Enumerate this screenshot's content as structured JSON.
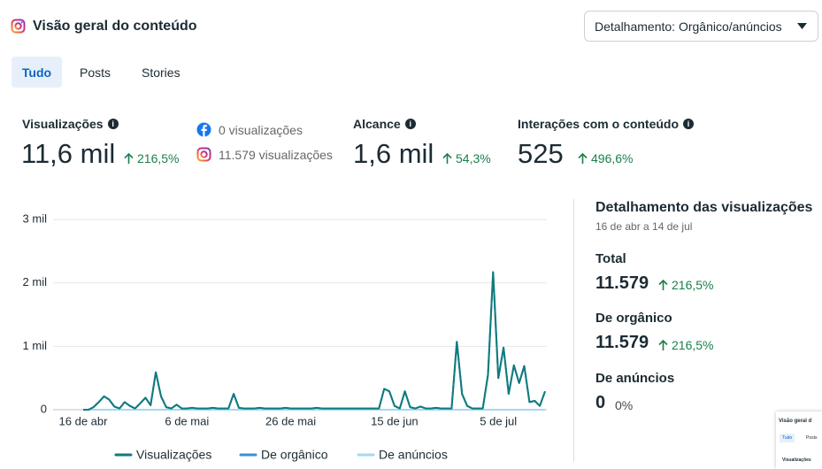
{
  "header": {
    "title": "Visão geral do conteúdo",
    "dropdown": "Detalhamento: Orgânico/anúncios"
  },
  "tabs": [
    "Tudo",
    "Posts",
    "Stories"
  ],
  "metrics": [
    {
      "label": "Visualizações",
      "value": "11,6 mil",
      "change": "216,5%",
      "sources": [
        "0 visualizações",
        "11.579 visualizações"
      ]
    },
    {
      "label": "Alcance",
      "value": "1,6 mil",
      "change": "54,3%"
    },
    {
      "label": "Interações com o conteúdo",
      "value": "525",
      "change": "496,6%"
    }
  ],
  "chart_data": {
    "type": "line",
    "categories": [
      "16 de abr",
      null,
      null,
      null,
      null,
      null,
      null,
      null,
      null,
      null,
      null,
      null,
      null,
      null,
      null,
      null,
      null,
      null,
      null,
      null,
      "6 de mai",
      null,
      null,
      null,
      null,
      null,
      null,
      null,
      null,
      null,
      null,
      null,
      null,
      null,
      null,
      null,
      null,
      null,
      null,
      null,
      "26 de mai",
      null,
      null,
      null,
      null,
      null,
      null,
      null,
      null,
      null,
      null,
      null,
      null,
      null,
      null,
      null,
      null,
      null,
      null,
      null,
      "15 de jun",
      null,
      null,
      null,
      null,
      null,
      null,
      null,
      null,
      null,
      null,
      null,
      null,
      null,
      null,
      null,
      null,
      null,
      null,
      null,
      "5 de jul",
      null,
      null,
      null,
      null,
      null,
      null,
      null,
      null,
      null
    ],
    "series": [
      {
        "name": "Visualizações",
        "color": "#0f7b7b",
        "values": [
          0,
          0,
          40,
          120,
          210,
          160,
          50,
          20,
          120,
          60,
          20,
          100,
          190,
          70,
          590,
          210,
          40,
          20,
          80,
          20,
          20,
          30,
          20,
          20,
          20,
          30,
          20,
          20,
          20,
          250,
          30,
          20,
          20,
          20,
          30,
          20,
          20,
          20,
          20,
          30,
          20,
          20,
          20,
          20,
          20,
          30,
          20,
          20,
          20,
          20,
          20,
          20,
          20,
          20,
          20,
          20,
          20,
          20,
          330,
          290,
          60,
          20,
          290,
          40,
          20,
          50,
          20,
          20,
          30,
          20,
          20,
          20,
          1070,
          250,
          60,
          20,
          20,
          20,
          550,
          2170,
          500,
          980,
          250,
          700,
          420,
          690,
          120,
          140,
          60,
          290
        ]
      },
      {
        "name": "De orgânico",
        "color": "#3b8fd9",
        "values": [
          0,
          0,
          40,
          120,
          210,
          160,
          50,
          20,
          120,
          60,
          20,
          100,
          190,
          70,
          590,
          210,
          40,
          20,
          80,
          20,
          20,
          30,
          20,
          20,
          20,
          30,
          20,
          20,
          20,
          250,
          30,
          20,
          20,
          20,
          30,
          20,
          20,
          20,
          20,
          30,
          20,
          20,
          20,
          20,
          20,
          30,
          20,
          20,
          20,
          20,
          20,
          20,
          20,
          20,
          20,
          20,
          20,
          20,
          330,
          290,
          60,
          20,
          290,
          40,
          20,
          50,
          20,
          20,
          30,
          20,
          20,
          20,
          1070,
          250,
          60,
          20,
          20,
          20,
          550,
          2170,
          500,
          980,
          250,
          700,
          420,
          690,
          120,
          140,
          60,
          290
        ]
      },
      {
        "name": "De anúncios",
        "color": "#a6d8f0",
        "values": [
          0,
          0,
          0,
          0,
          0,
          0,
          0,
          0,
          0,
          0,
          0,
          0,
          0,
          0,
          0,
          0,
          0,
          0,
          0,
          0,
          0,
          0,
          0,
          0,
          0,
          0,
          0,
          0,
          0,
          0,
          0,
          0,
          0,
          0,
          0,
          0,
          0,
          0,
          0,
          0,
          0,
          0,
          0,
          0,
          0,
          0,
          0,
          0,
          0,
          0,
          0,
          0,
          0,
          0,
          0,
          0,
          0,
          0,
          0,
          0,
          0,
          0,
          0,
          0,
          0,
          0,
          0,
          0,
          0,
          0,
          0,
          0,
          0,
          0,
          0,
          0,
          0,
          0,
          0,
          0,
          0,
          0,
          0,
          0,
          0,
          0,
          0,
          0,
          0,
          0
        ]
      }
    ],
    "ylim": [
      0,
      3000
    ],
    "yticks": [
      0,
      {
        "value": 1000,
        "label": "1 mil"
      },
      {
        "value": 2000,
        "label": "2 mil"
      },
      {
        "value": 3000,
        "label": "3 mil"
      }
    ],
    "grid": true
  },
  "breakdown": {
    "title": "Detalhamento das visualizações",
    "period": "16 de abr a 14 de jul",
    "items": [
      {
        "label": "Total",
        "value": "11.579",
        "change": "216,5%"
      },
      {
        "label": "De orgânico",
        "value": "11.579",
        "change": "216,5%"
      },
      {
        "label": "De anúncios",
        "value": "0",
        "change": "0%"
      }
    ]
  },
  "thumbnail": {
    "title": "Visão geral d",
    "tabs": [
      "Tudo",
      "Posts"
    ],
    "metric": "Visualizações"
  }
}
